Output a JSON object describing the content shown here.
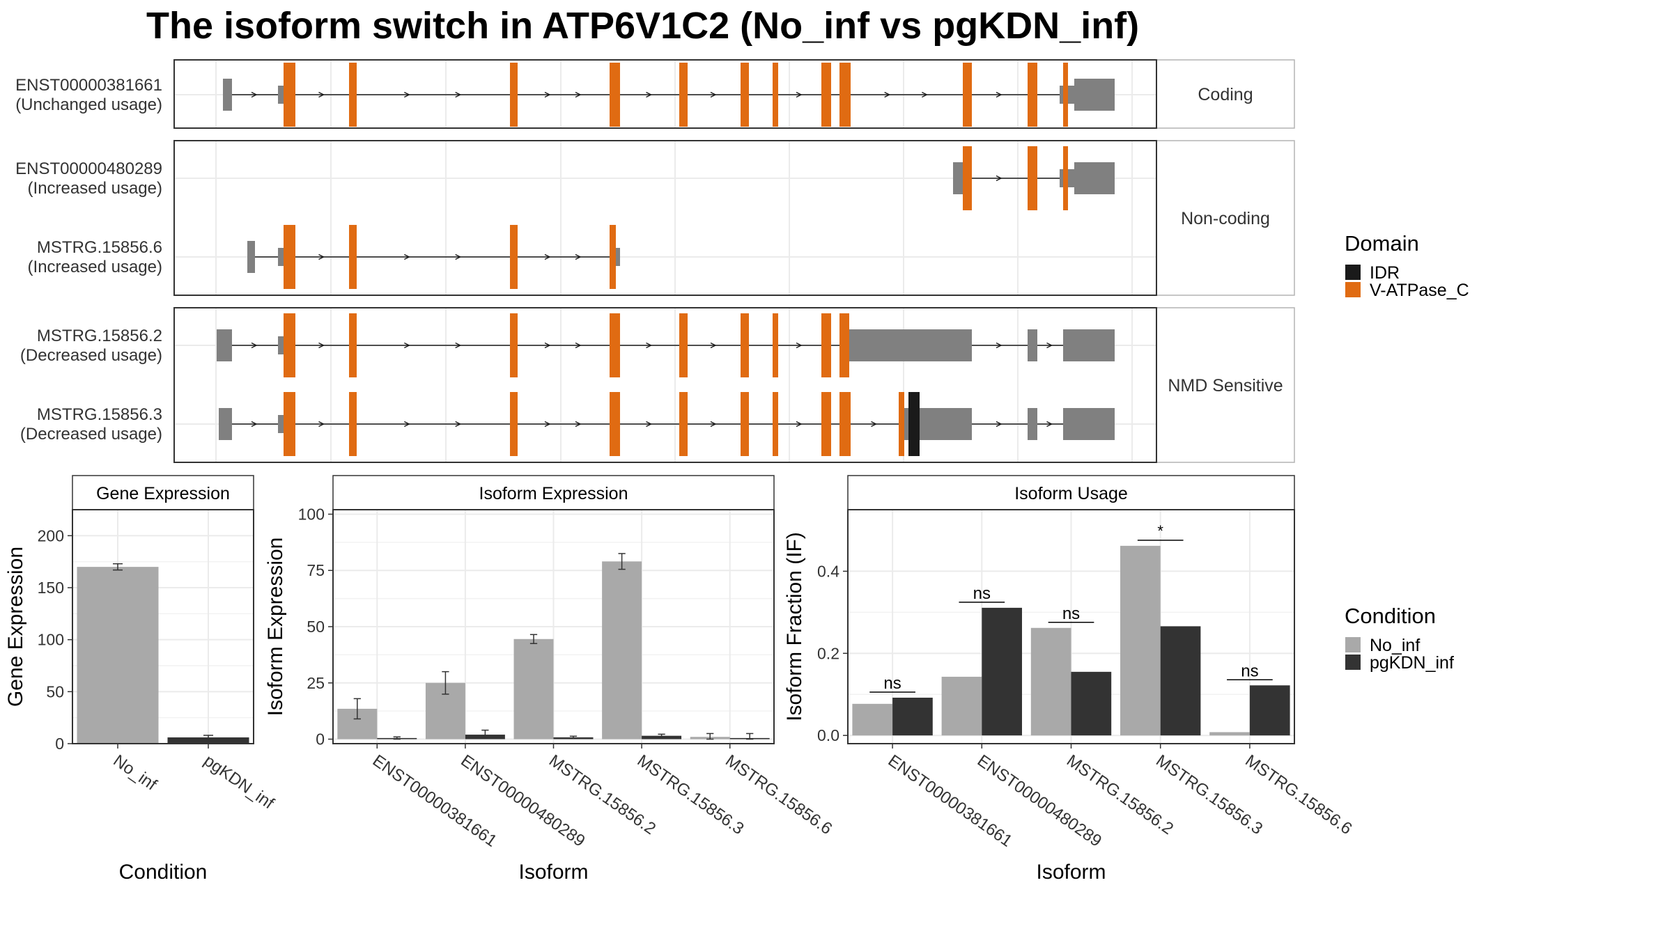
{
  "title": "The isoform switch in ATP6V1C2 (No_inf vs pgKDN_inf)",
  "colors": {
    "no_inf": "#a9a9a9",
    "pgkdn_inf": "#333333",
    "domain_idr": "#1a1a1a",
    "domain_vatpase": "#e06b12",
    "exon": "#808080",
    "grid": "#ebebeb",
    "strip": "#ffffff"
  },
  "structure": {
    "panels": [
      {
        "label": "Coding",
        "transcripts": [
          {
            "id": "ENST00000381661",
            "usage": "(Unchanged usage)"
          }
        ]
      },
      {
        "label": "Non-coding",
        "transcripts": [
          {
            "id": "ENST00000480289",
            "usage": "(Increased usage)"
          },
          {
            "id": "MSTRG.15856.6",
            "usage": "(Increased usage)"
          }
        ]
      },
      {
        "label": "NMD Sensitive",
        "transcripts": [
          {
            "id": "MSTRG.15856.2",
            "usage": "(Decreased usage)"
          },
          {
            "id": "MSTRG.15856.3",
            "usage": "(Decreased usage)"
          }
        ]
      }
    ]
  },
  "domain_legend": {
    "title": "Domain",
    "items": [
      {
        "label": "IDR",
        "color": "#1a1a1a"
      },
      {
        "label": "V-ATPase_C",
        "color": "#e06b12"
      }
    ]
  },
  "condition_legend": {
    "title": "Condition",
    "items": [
      {
        "label": "No_inf",
        "color": "#a9a9a9"
      },
      {
        "label": "pgKDN_inf",
        "color": "#333333"
      }
    ]
  },
  "chart_data": [
    {
      "type": "bar",
      "strip": "Gene Expression",
      "xlabel": "Condition",
      "ylabel": "Gene Expression",
      "categories": [
        "No_inf",
        "pgKDN_inf"
      ],
      "values": [
        170,
        6
      ],
      "errors": [
        [
          167,
          173
        ],
        [
          4,
          8
        ]
      ],
      "ylim": [
        0,
        225
      ],
      "yticks": [
        0,
        50,
        100,
        150,
        200
      ]
    },
    {
      "type": "bar",
      "strip": "Isoform Expression",
      "xlabel": "Isoform",
      "ylabel": "Isoform Expression",
      "categories": [
        "ENST00000381661",
        "ENST00000480289",
        "MSTRG.15856.2",
        "MSTRG.15856.3",
        "MSTRG.15856.6"
      ],
      "series": [
        {
          "name": "No_inf",
          "values": [
            13.5,
            25,
            44.5,
            79,
            1
          ],
          "errors": [
            [
              9,
              18
            ],
            [
              20,
              30
            ],
            [
              42.5,
              46.5
            ],
            [
              75.5,
              82.5
            ],
            [
              0,
              2.5
            ]
          ]
        },
        {
          "name": "pgKDN_inf",
          "values": [
            0.5,
            2,
            0.8,
            1.5,
            0.5
          ],
          "errors": [
            [
              0,
              1
            ],
            [
              0.5,
              4
            ],
            [
              0.3,
              1.3
            ],
            [
              0.8,
              2.2
            ],
            [
              0,
              2.5
            ]
          ]
        }
      ],
      "ylim": [
        -2,
        102
      ],
      "yticks": [
        0,
        25,
        50,
        75,
        100
      ]
    },
    {
      "type": "bar",
      "strip": "Isoform Usage",
      "xlabel": "Isoform",
      "ylabel": "Isoform Fraction (IF)",
      "categories": [
        "ENST00000381661",
        "ENST00000480289",
        "MSTRG.15856.2",
        "MSTRG.15856.3",
        "MSTRG.15856.6"
      ],
      "series": [
        {
          "name": "No_inf",
          "values": [
            0.077,
            0.143,
            0.262,
            0.462,
            0.008
          ]
        },
        {
          "name": "pgKDN_inf",
          "values": [
            0.092,
            0.311,
            0.155,
            0.266,
            0.122
          ]
        }
      ],
      "significance": [
        "ns",
        "ns",
        "ns",
        "*",
        "ns"
      ],
      "ylim": [
        -0.02,
        0.55
      ],
      "yticks": [
        0.0,
        0.2,
        0.4
      ],
      "ytick_labels": [
        "0.0",
        "0.2",
        "0.4"
      ]
    }
  ]
}
